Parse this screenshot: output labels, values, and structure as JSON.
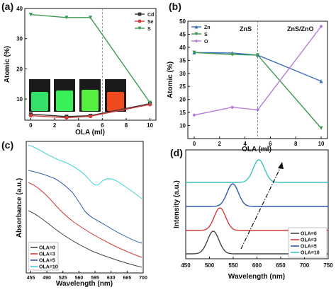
{
  "chart_data": [
    {
      "id": "a",
      "panel_label": "(a)",
      "type": "line",
      "xlabel": "OLA (ml)",
      "ylabel": "Atomic (%)",
      "xlim": [
        -0.5,
        10.5
      ],
      "ylim": [
        3,
        40
      ],
      "xticks": [
        "0",
        "2",
        "4",
        "6",
        "8",
        "10"
      ],
      "yticks": [
        "10",
        "20",
        "30",
        "40"
      ],
      "divider_x": 6,
      "legend_position": "top-right",
      "inset": "photo of four vials (green, green, green, red emission)",
      "series": [
        {
          "name": "Cd",
          "color": "#333333",
          "marker": "square",
          "x": [
            0,
            3,
            5,
            10
          ],
          "y": [
            5,
            4.2,
            4.5,
            8.5
          ]
        },
        {
          "name": "Se",
          "color": "#d23c3c",
          "marker": "circle",
          "x": [
            0,
            3,
            5,
            10
          ],
          "y": [
            4.5,
            3.8,
            4.3,
            8.2
          ]
        },
        {
          "name": "S",
          "color": "#3c9a4e",
          "marker": "triangle-down",
          "x": [
            0,
            3,
            5,
            10
          ],
          "y": [
            38,
            37,
            37,
            8.8
          ]
        }
      ]
    },
    {
      "id": "b",
      "panel_label": "(b)",
      "type": "line",
      "xlabel": "OLA (ml)",
      "ylabel": "Atomic (%)",
      "xlim": [
        -0.5,
        10.5
      ],
      "ylim": [
        5,
        50
      ],
      "xticks": [
        "0",
        "2",
        "4",
        "6",
        "8",
        "10"
      ],
      "yticks": [
        "10",
        "15",
        "20",
        "25",
        "30",
        "35",
        "40",
        "45",
        "50"
      ],
      "divider_x": 5,
      "region_labels": [
        "ZnS",
        "ZnS/ZnO"
      ],
      "legend_position": "top-left",
      "series": [
        {
          "name": "Zn",
          "color": "#3a6fbf",
          "marker": "triangle-up",
          "x": [
            0,
            3,
            5,
            10
          ],
          "y": [
            38,
            37.8,
            37,
            27
          ]
        },
        {
          "name": "S",
          "color": "#3c9a4e",
          "marker": "triangle-down",
          "x": [
            0,
            3,
            5,
            10
          ],
          "y": [
            38,
            37.2,
            37,
            9
          ]
        },
        {
          "name": "O",
          "color": "#b57ad6",
          "marker": "diamond",
          "x": [
            0,
            3,
            5,
            10
          ],
          "y": [
            14,
            17,
            16,
            48
          ]
        }
      ]
    },
    {
      "id": "c",
      "panel_label": "(c)",
      "type": "line",
      "xlabel": "Wavelength (nm)",
      "ylabel": "Absorbance (a.u.)",
      "xlim": [
        445,
        700
      ],
      "xticks": [
        "455",
        "490",
        "525",
        "560",
        "595",
        "630",
        "665",
        "700"
      ],
      "legend_position": "bottom-left",
      "series": [
        {
          "name": "OLA=0",
          "color": "#444444"
        },
        {
          "name": "OLA=3",
          "color": "#d23c3c"
        },
        {
          "name": "OLA=5",
          "color": "#2f5bb0"
        },
        {
          "name": "OLA=10",
          "color": "#3fd3d3"
        }
      ]
    },
    {
      "id": "d",
      "panel_label": "(d)",
      "type": "line",
      "xlabel": "Wavelength (nm)",
      "ylabel": "Intensity (a.u.)",
      "xlim": [
        450,
        750
      ],
      "xticks": [
        "450",
        "500",
        "550",
        "600",
        "650",
        "700",
        "750"
      ],
      "legend_position": "bottom-right",
      "series": [
        {
          "name": "OLA=0",
          "color": "#444444",
          "peak_nm": 508
        },
        {
          "name": "OLA=3",
          "color": "#d23c3c",
          "peak_nm": 522
        },
        {
          "name": "OLA=5",
          "color": "#2f5bb0",
          "peak_nm": 549
        },
        {
          "name": "OLA=10",
          "color": "#3fbfbf",
          "peak_nm": 604
        }
      ]
    }
  ]
}
